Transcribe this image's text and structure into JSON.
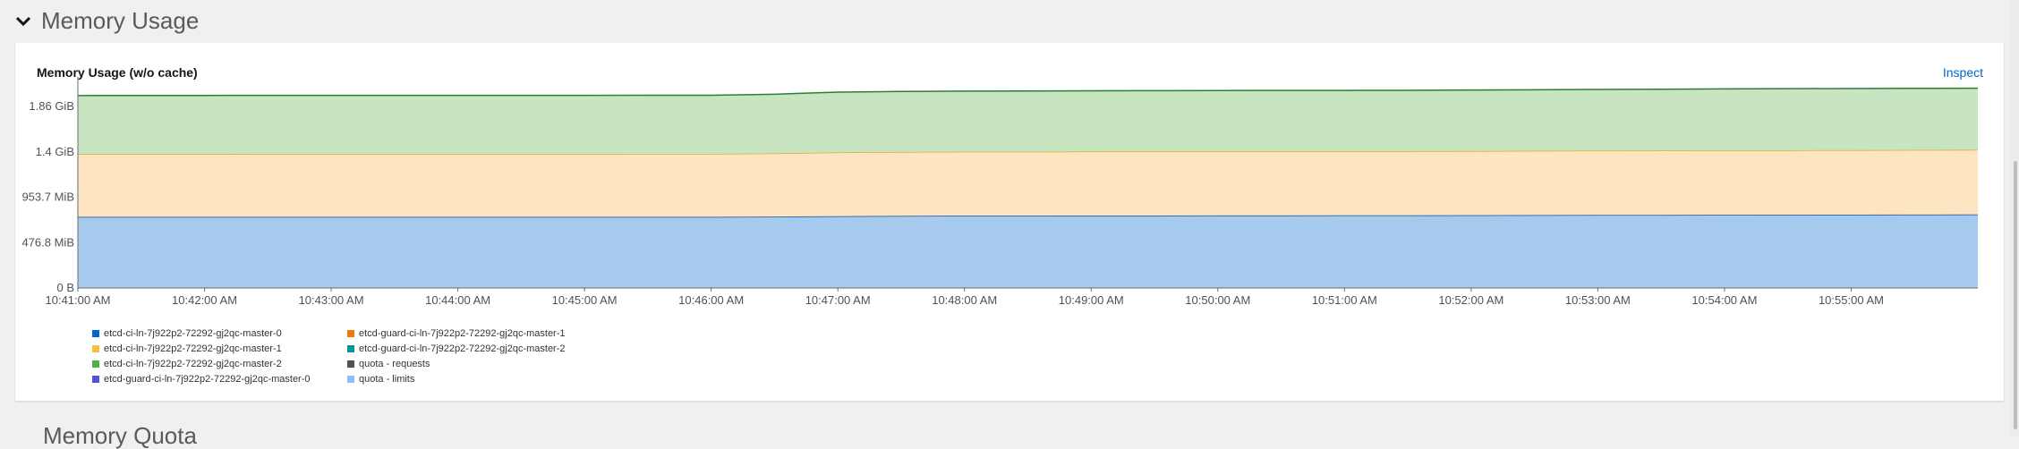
{
  "section": {
    "title": "Memory Usage",
    "next_title": "Memory Quota"
  },
  "card": {
    "title": "Memory Usage (w/o cache)",
    "inspect_label": "Inspect"
  },
  "icons": {
    "collapse": "chevron-down-icon"
  },
  "chart_data": {
    "type": "area",
    "stacked": true,
    "title": "Memory Usage (w/o cache)",
    "y_ticks": [
      "0 B",
      "476.8 MiB",
      "953.7 MiB",
      "1.4 GiB",
      "1.86 GiB"
    ],
    "y_tick_values_mib": [
      0,
      476.8,
      953.7,
      1430.5,
      1907.3
    ],
    "ylim_mib": [
      0,
      2200
    ],
    "x_ticks": [
      "10:41:00 AM",
      "10:42:00 AM",
      "10:43:00 AM",
      "10:44:00 AM",
      "10:45:00 AM",
      "10:46:00 AM",
      "10:47:00 AM",
      "10:48:00 AM",
      "10:49:00 AM",
      "10:50:00 AM",
      "10:51:00 AM",
      "10:52:00 AM",
      "10:53:00 AM",
      "10:54:00 AM",
      "10:55:00 AM"
    ],
    "x": [
      "10:41:00 AM",
      "10:41:30 AM",
      "10:42:00 AM",
      "10:42:30 AM",
      "10:43:00 AM",
      "10:43:30 AM",
      "10:44:00 AM",
      "10:44:30 AM",
      "10:45:00 AM",
      "10:45:30 AM",
      "10:46:00 AM",
      "10:46:30 AM",
      "10:47:00 AM",
      "10:47:30 AM",
      "10:48:00 AM",
      "10:48:30 AM",
      "10:49:00 AM",
      "10:49:30 AM",
      "10:50:00 AM",
      "10:50:30 AM",
      "10:51:00 AM",
      "10:51:30 AM",
      "10:52:00 AM",
      "10:52:30 AM",
      "10:53:00 AM",
      "10:53:30 AM",
      "10:54:00 AM",
      "10:54:30 AM",
      "10:55:00 AM",
      "10:55:30 AM",
      "10:56:00 AM"
    ],
    "x_start": "10:41:00 AM",
    "x_end": "10:56:00 AM",
    "series": [
      {
        "name": "etcd-ci-ln-7j922p2-72292-gj2qc-master-0",
        "color": "#a6c9ee",
        "line": "#0b4f9c",
        "values": [
          748,
          748,
          748,
          748,
          748,
          748,
          748,
          748,
          748,
          748,
          748,
          750,
          755,
          758,
          760,
          760,
          761,
          762,
          763,
          763,
          764,
          764,
          765,
          766,
          767,
          768,
          769,
          770,
          771,
          772,
          773
        ]
      },
      {
        "name": "etcd-ci-ln-7j922p2-72292-gj2qc-master-1",
        "color": "#fce5c0",
        "line": "#e5a92a",
        "values": [
          660,
          660,
          660,
          661,
          661,
          661,
          661,
          661,
          661,
          662,
          662,
          665,
          670,
          672,
          673,
          673,
          674,
          674,
          674,
          674,
          674,
          674,
          675,
          676,
          677,
          678,
          678,
          678,
          678,
          679,
          679
        ]
      },
      {
        "name": "etcd-ci-ln-7j922p2-72292-gj2qc-master-2",
        "color": "#c6e5c0",
        "line": "#2e7d32",
        "values": [
          614,
          616,
          616,
          616,
          616,
          616,
          616,
          616,
          616,
          616,
          616,
          622,
          634,
          636,
          637,
          638,
          638,
          638,
          639,
          640,
          639,
          640,
          641,
          642,
          643,
          644,
          646,
          647,
          648,
          648,
          648
        ]
      }
    ],
    "legend_position": "bottom-left",
    "legend": [
      {
        "label": "etcd-ci-ln-7j922p2-72292-gj2qc-master-0",
        "color": "#0066cc"
      },
      {
        "label": "etcd-guard-ci-ln-7j922p2-72292-gj2qc-master-1",
        "color": "#ec7a08"
      },
      {
        "label": "etcd-ci-ln-7j922p2-72292-gj2qc-master-1",
        "color": "#f4c145"
      },
      {
        "label": "etcd-guard-ci-ln-7j922p2-72292-gj2qc-master-2",
        "color": "#009596"
      },
      {
        "label": "etcd-ci-ln-7j922p2-72292-gj2qc-master-2",
        "color": "#4cb140"
      },
      {
        "label": "quota - requests",
        "color": "#4f5255"
      },
      {
        "label": "etcd-guard-ci-ln-7j922p2-72292-gj2qc-master-0",
        "color": "#5752d1"
      },
      {
        "label": "quota - limits",
        "color": "#8bc1f7"
      }
    ],
    "grid": true
  }
}
